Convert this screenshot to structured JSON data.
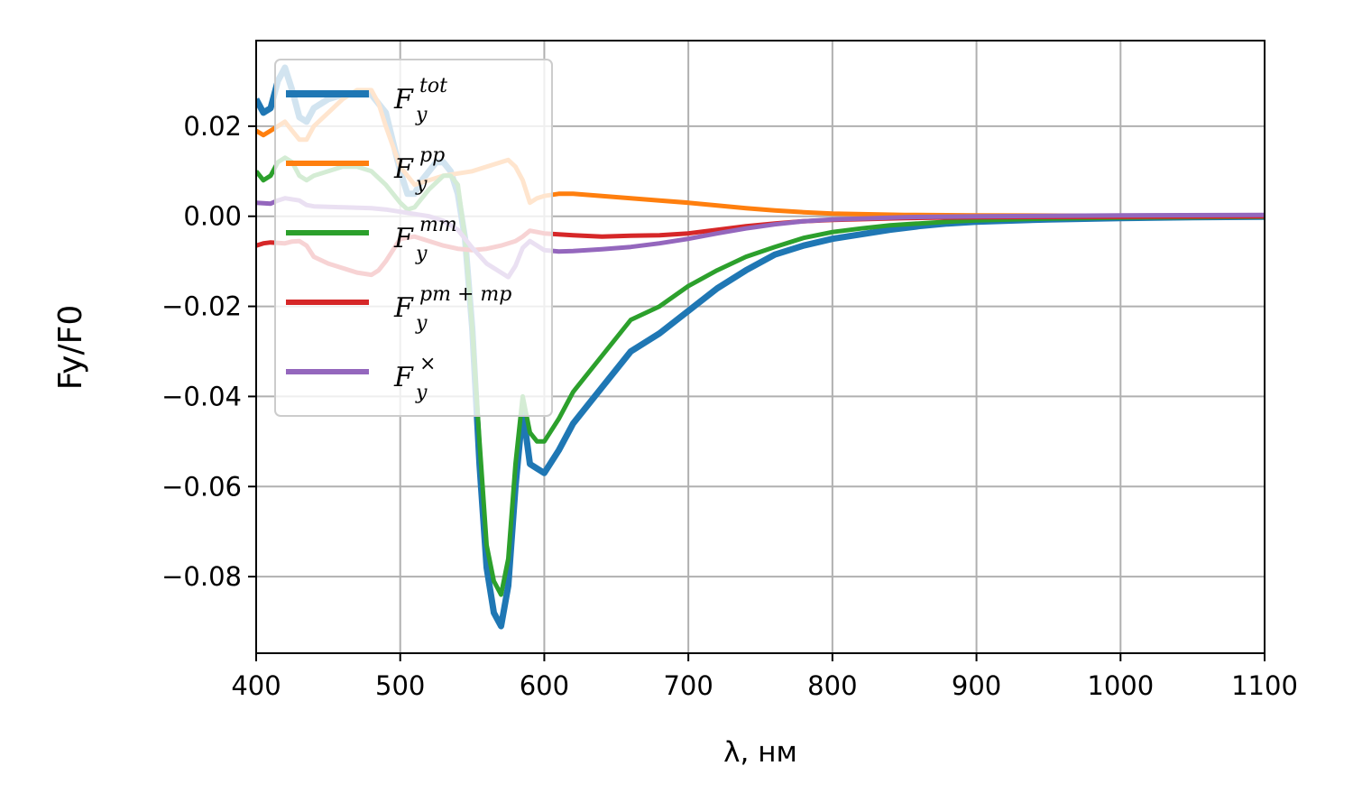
{
  "chart_data": {
    "type": "line",
    "title": "",
    "xlabel": "λ, нм",
    "ylabel": "Fy/F0",
    "xlim": [
      400,
      1100
    ],
    "ylim": [
      -0.097,
      0.039
    ],
    "xticks": [
      400,
      500,
      600,
      700,
      800,
      900,
      1000,
      1100
    ],
    "yticks": [
      -0.08,
      -0.06,
      -0.04,
      -0.02,
      0.0,
      0.02
    ],
    "grid": true,
    "legend_position": "upper-left",
    "series": [
      {
        "name": "F_y^tot",
        "legend_base": "F",
        "legend_sub": "y",
        "legend_sup": "tot",
        "color": "#1f77b4",
        "width": 7,
        "points": [
          [
            400,
            0.026
          ],
          [
            405,
            0.023
          ],
          [
            410,
            0.024
          ],
          [
            415,
            0.03
          ],
          [
            420,
            0.033
          ],
          [
            425,
            0.028
          ],
          [
            430,
            0.022
          ],
          [
            435,
            0.021
          ],
          [
            440,
            0.024
          ],
          [
            450,
            0.026
          ],
          [
            460,
            0.027
          ],
          [
            470,
            0.027
          ],
          [
            480,
            0.027
          ],
          [
            490,
            0.023
          ],
          [
            500,
            0.01
          ],
          [
            505,
            0.005
          ],
          [
            510,
            0.005
          ],
          [
            515,
            0.008
          ],
          [
            520,
            0.01
          ],
          [
            525,
            0.012
          ],
          [
            530,
            0.012
          ],
          [
            535,
            0.01
          ],
          [
            540,
            0.005
          ],
          [
            545,
            -0.005
          ],
          [
            550,
            -0.025
          ],
          [
            555,
            -0.055
          ],
          [
            560,
            -0.078
          ],
          [
            565,
            -0.088
          ],
          [
            570,
            -0.091
          ],
          [
            575,
            -0.082
          ],
          [
            580,
            -0.06
          ],
          [
            585,
            -0.043
          ],
          [
            590,
            -0.055
          ],
          [
            595,
            -0.056
          ],
          [
            600,
            -0.057
          ],
          [
            610,
            -0.052
          ],
          [
            620,
            -0.046
          ],
          [
            640,
            -0.038
          ],
          [
            660,
            -0.03
          ],
          [
            680,
            -0.026
          ],
          [
            700,
            -0.021
          ],
          [
            720,
            -0.016
          ],
          [
            740,
            -0.012
          ],
          [
            760,
            -0.0085
          ],
          [
            780,
            -0.0065
          ],
          [
            800,
            -0.005
          ],
          [
            820,
            -0.004
          ],
          [
            840,
            -0.003
          ],
          [
            860,
            -0.0022
          ],
          [
            880,
            -0.0016
          ],
          [
            900,
            -0.0012
          ],
          [
            950,
            -0.0007
          ],
          [
            1000,
            -0.0004
          ],
          [
            1050,
            -0.0002
          ],
          [
            1100,
            -0.0001
          ]
        ]
      },
      {
        "name": "F_y^pp",
        "legend_base": "F",
        "legend_sub": "y",
        "legend_sup": "pp",
        "color": "#ff7f0e",
        "width": 5,
        "points": [
          [
            400,
            0.019
          ],
          [
            405,
            0.018
          ],
          [
            410,
            0.019
          ],
          [
            415,
            0.02
          ],
          [
            420,
            0.021
          ],
          [
            425,
            0.019
          ],
          [
            430,
            0.017
          ],
          [
            435,
            0.017
          ],
          [
            440,
            0.02
          ],
          [
            450,
            0.023
          ],
          [
            460,
            0.026
          ],
          [
            470,
            0.028
          ],
          [
            475,
            0.028
          ],
          [
            480,
            0.028
          ],
          [
            485,
            0.025
          ],
          [
            490,
            0.02
          ],
          [
            500,
            0.011
          ],
          [
            510,
            0.007
          ],
          [
            520,
            0.008
          ],
          [
            530,
            0.009
          ],
          [
            540,
            0.0095
          ],
          [
            550,
            0.01
          ],
          [
            560,
            0.011
          ],
          [
            570,
            0.012
          ],
          [
            575,
            0.0125
          ],
          [
            580,
            0.011
          ],
          [
            585,
            0.008
          ],
          [
            590,
            0.003
          ],
          [
            595,
            0.004
          ],
          [
            600,
            0.0045
          ],
          [
            610,
            0.005
          ],
          [
            620,
            0.005
          ],
          [
            640,
            0.0045
          ],
          [
            660,
            0.004
          ],
          [
            680,
            0.0035
          ],
          [
            700,
            0.003
          ],
          [
            720,
            0.0024
          ],
          [
            740,
            0.0018
          ],
          [
            760,
            0.0013
          ],
          [
            780,
            0.0009
          ],
          [
            800,
            0.0006
          ],
          [
            850,
            0.0003
          ],
          [
            900,
            0.0002
          ],
          [
            1000,
            0.0001
          ],
          [
            1100,
            0.0001
          ]
        ]
      },
      {
        "name": "F_y^mm",
        "legend_base": "F",
        "legend_sub": "y",
        "legend_sup": "mm",
        "color": "#2ca02c",
        "width": 5,
        "points": [
          [
            400,
            0.01
          ],
          [
            405,
            0.008
          ],
          [
            410,
            0.009
          ],
          [
            415,
            0.012
          ],
          [
            420,
            0.013
          ],
          [
            425,
            0.012
          ],
          [
            430,
            0.009
          ],
          [
            435,
            0.008
          ],
          [
            440,
            0.009
          ],
          [
            450,
            0.01
          ],
          [
            460,
            0.011
          ],
          [
            470,
            0.011
          ],
          [
            480,
            0.01
          ],
          [
            490,
            0.007
          ],
          [
            500,
            0.003
          ],
          [
            505,
            0.0015
          ],
          [
            510,
            0.002
          ],
          [
            515,
            0.004
          ],
          [
            520,
            0.006
          ],
          [
            530,
            0.009
          ],
          [
            535,
            0.009
          ],
          [
            540,
            0.007
          ],
          [
            545,
            -0.005
          ],
          [
            550,
            -0.025
          ],
          [
            555,
            -0.05
          ],
          [
            560,
            -0.073
          ],
          [
            565,
            -0.081
          ],
          [
            570,
            -0.084
          ],
          [
            575,
            -0.076
          ],
          [
            580,
            -0.055
          ],
          [
            585,
            -0.04
          ],
          [
            590,
            -0.048
          ],
          [
            595,
            -0.05
          ],
          [
            600,
            -0.05
          ],
          [
            610,
            -0.045
          ],
          [
            620,
            -0.039
          ],
          [
            640,
            -0.031
          ],
          [
            660,
            -0.023
          ],
          [
            680,
            -0.02
          ],
          [
            700,
            -0.0155
          ],
          [
            720,
            -0.012
          ],
          [
            740,
            -0.009
          ],
          [
            760,
            -0.0068
          ],
          [
            780,
            -0.0048
          ],
          [
            800,
            -0.0035
          ],
          [
            820,
            -0.0027
          ],
          [
            840,
            -0.002
          ],
          [
            860,
            -0.0016
          ],
          [
            880,
            -0.0012
          ],
          [
            900,
            -0.0009
          ],
          [
            950,
            -0.0005
          ],
          [
            1000,
            -0.0003
          ],
          [
            1050,
            -0.0002
          ],
          [
            1100,
            -0.0001
          ]
        ]
      },
      {
        "name": "F_y^pm+mp",
        "legend_base": "F",
        "legend_sub": "y",
        "legend_sup": "pm + mp",
        "color": "#d62728",
        "width": 5,
        "points": [
          [
            400,
            -0.0065
          ],
          [
            405,
            -0.006
          ],
          [
            410,
            -0.0058
          ],
          [
            420,
            -0.006
          ],
          [
            425,
            -0.0056
          ],
          [
            430,
            -0.0055
          ],
          [
            435,
            -0.0065
          ],
          [
            440,
            -0.009
          ],
          [
            450,
            -0.0105
          ],
          [
            460,
            -0.0115
          ],
          [
            470,
            -0.0125
          ],
          [
            480,
            -0.013
          ],
          [
            485,
            -0.012
          ],
          [
            490,
            -0.01
          ],
          [
            500,
            -0.005
          ],
          [
            510,
            -0.0045
          ],
          [
            520,
            -0.0055
          ],
          [
            530,
            -0.0065
          ],
          [
            540,
            -0.0072
          ],
          [
            550,
            -0.0075
          ],
          [
            560,
            -0.0072
          ],
          [
            570,
            -0.0065
          ],
          [
            580,
            -0.0055
          ],
          [
            585,
            -0.0045
          ],
          [
            590,
            -0.0032
          ],
          [
            600,
            -0.0038
          ],
          [
            620,
            -0.0042
          ],
          [
            640,
            -0.0045
          ],
          [
            660,
            -0.0043
          ],
          [
            680,
            -0.0042
          ],
          [
            700,
            -0.0038
          ],
          [
            720,
            -0.003
          ],
          [
            740,
            -0.0022
          ],
          [
            760,
            -0.0016
          ],
          [
            780,
            -0.0011
          ],
          [
            800,
            -0.0008
          ],
          [
            850,
            -0.0004
          ],
          [
            900,
            -0.0002
          ],
          [
            1000,
            -0.0001
          ],
          [
            1100,
            0.0
          ]
        ]
      },
      {
        "name": "F_y^×",
        "legend_base": "F",
        "legend_sub": "y",
        "legend_sup": "×",
        "color": "#9467bd",
        "width": 5,
        "points": [
          [
            400,
            0.003
          ],
          [
            410,
            0.0028
          ],
          [
            415,
            0.0035
          ],
          [
            420,
            0.004
          ],
          [
            430,
            0.0035
          ],
          [
            435,
            0.0025
          ],
          [
            440,
            0.0022
          ],
          [
            460,
            0.002
          ],
          [
            480,
            0.0018
          ],
          [
            490,
            0.0015
          ],
          [
            500,
            0.001
          ],
          [
            510,
            0.0005
          ],
          [
            520,
            0.0
          ],
          [
            530,
            -0.001
          ],
          [
            540,
            -0.003
          ],
          [
            550,
            -0.007
          ],
          [
            560,
            -0.0105
          ],
          [
            570,
            -0.0125
          ],
          [
            575,
            -0.0135
          ],
          [
            580,
            -0.011
          ],
          [
            585,
            -0.007
          ],
          [
            590,
            -0.0055
          ],
          [
            600,
            -0.0075
          ],
          [
            610,
            -0.0078
          ],
          [
            620,
            -0.0077
          ],
          [
            640,
            -0.0073
          ],
          [
            660,
            -0.0068
          ],
          [
            680,
            -0.006
          ],
          [
            700,
            -0.005
          ],
          [
            720,
            -0.0038
          ],
          [
            740,
            -0.0027
          ],
          [
            760,
            -0.0018
          ],
          [
            780,
            -0.0011
          ],
          [
            800,
            -0.0007
          ],
          [
            850,
            -0.0002
          ],
          [
            900,
            0.0
          ],
          [
            1000,
            0.0002
          ],
          [
            1100,
            0.0003
          ]
        ]
      }
    ]
  }
}
